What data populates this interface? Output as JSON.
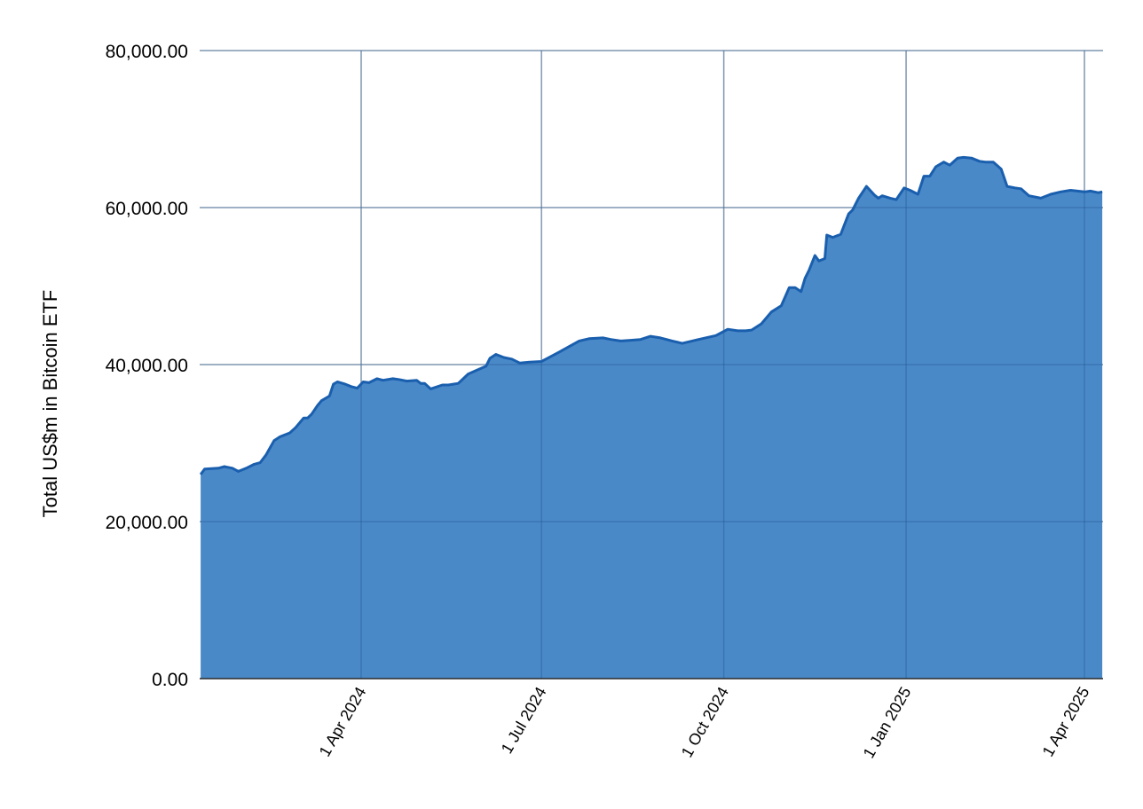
{
  "chart_data": {
    "type": "area",
    "title": "",
    "xlabel": "",
    "ylabel": "Total US$m in Bitcoin ETF",
    "ylim": [
      0,
      80000
    ],
    "xlim": [
      "2024-01-11",
      "2025-04-11"
    ],
    "grid": true,
    "legend": "none",
    "colors": {
      "fill": "#4a89c8",
      "line": "#1a5fae",
      "grid": "#cccccc",
      "axis": "#333333"
    },
    "yticks": [
      {
        "value": 0,
        "label": "0.00"
      },
      {
        "value": 20000,
        "label": "20,000.00"
      },
      {
        "value": 40000,
        "label": "40,000.00"
      },
      {
        "value": 60000,
        "label": "60,000.00"
      },
      {
        "value": 80000,
        "label": "80,000.00"
      }
    ],
    "xticks": [
      {
        "value": "2024-04-01",
        "label": "1 Apr 2024"
      },
      {
        "value": "2024-07-01",
        "label": "1 Jul 2024"
      },
      {
        "value": "2024-10-01",
        "label": "1 Oct 2024"
      },
      {
        "value": "2025-01-01",
        "label": "1 Jan 2025"
      },
      {
        "value": "2025-04-01",
        "label": "1 Apr 2025"
      }
    ],
    "series": [
      {
        "x": [
          "2024-01-11",
          "2024-01-13",
          "2024-01-20",
          "2024-01-23",
          "2024-01-27",
          "2024-01-30",
          "2024-02-03",
          "2024-02-07",
          "2024-02-10",
          "2024-02-13",
          "2024-02-17",
          "2024-02-20",
          "2024-02-22",
          "2024-02-25",
          "2024-02-28",
          "2024-03-03",
          "2024-03-05",
          "2024-03-07",
          "2024-03-10",
          "2024-03-12",
          "2024-03-14",
          "2024-03-16",
          "2024-03-18",
          "2024-03-20",
          "2024-03-24",
          "2024-03-27",
          "2024-03-30",
          "2024-04-02",
          "2024-04-05",
          "2024-04-09",
          "2024-04-12",
          "2024-04-17",
          "2024-04-20",
          "2024-04-24",
          "2024-04-29",
          "2024-05-01",
          "2024-05-03",
          "2024-05-06",
          "2024-05-12",
          "2024-05-15",
          "2024-05-20",
          "2024-05-25",
          "2024-06-03",
          "2024-06-05",
          "2024-06-08",
          "2024-06-12",
          "2024-06-16",
          "2024-06-20",
          "2024-06-25",
          "2024-07-01",
          "2024-07-04",
          "2024-07-10",
          "2024-07-15",
          "2024-07-20",
          "2024-07-25",
          "2024-08-01",
          "2024-08-05",
          "2024-08-10",
          "2024-08-15",
          "2024-08-20",
          "2024-08-25",
          "2024-08-30",
          "2024-09-05",
          "2024-09-10",
          "2024-09-15",
          "2024-09-20",
          "2024-09-27",
          "2024-10-03",
          "2024-10-08",
          "2024-10-12",
          "2024-10-15",
          "2024-10-20",
          "2024-10-25",
          "2024-10-30",
          "2024-11-03",
          "2024-11-06",
          "2024-11-09",
          "2024-11-11",
          "2024-11-13",
          "2024-11-16",
          "2024-11-18",
          "2024-11-21",
          "2024-11-22",
          "2024-11-25",
          "2024-11-29",
          "2024-12-03",
          "2024-12-05",
          "2024-12-08",
          "2024-12-12",
          "2024-12-16",
          "2024-12-18",
          "2024-12-20",
          "2024-12-24",
          "2024-12-27",
          "2024-12-31",
          "2025-01-03",
          "2025-01-07",
          "2025-01-10",
          "2025-01-13",
          "2025-01-16",
          "2025-01-20",
          "2025-01-23",
          "2025-01-27",
          "2025-01-30",
          "2025-02-03",
          "2025-02-07",
          "2025-02-10",
          "2025-02-14",
          "2025-02-18",
          "2025-02-21",
          "2025-02-25",
          "2025-02-28",
          "2025-03-04",
          "2025-03-10",
          "2025-03-15",
          "2025-03-20",
          "2025-03-25",
          "2025-04-01",
          "2025-04-04",
          "2025-04-08",
          "2025-04-10"
        ],
        "values": [
          26000,
          26700,
          26800,
          27000,
          26800,
          26400,
          26800,
          27300,
          27500,
          28500,
          30300,
          30800,
          31000,
          31300,
          32000,
          33200,
          33200,
          33700,
          34800,
          35400,
          35700,
          36000,
          37500,
          37800,
          37500,
          37200,
          37000,
          37800,
          37700,
          38200,
          38000,
          38200,
          38100,
          37900,
          38000,
          37600,
          37600,
          36900,
          37400,
          37400,
          37600,
          38800,
          39800,
          40800,
          41300,
          40900,
          40700,
          40200,
          40300,
          40400,
          40800,
          41600,
          42300,
          43000,
          43300,
          43400,
          43200,
          43000,
          43100,
          43200,
          43600,
          43400,
          43000,
          42700,
          43000,
          43300,
          43700,
          44500,
          44300,
          44300,
          44400,
          45200,
          46700,
          47500,
          49800,
          49800,
          49300,
          51000,
          52000,
          53900,
          53200,
          53500,
          56500,
          56200,
          56600,
          59200,
          59700,
          61200,
          62700,
          61600,
          61200,
          61500,
          61200,
          61000,
          62500,
          62200,
          61700,
          64000,
          64000,
          65200,
          65800,
          65400,
          66300,
          66400,
          66300,
          65900,
          65800,
          65800,
          64900,
          62700,
          62500,
          62400,
          61500,
          61200,
          61700,
          62000,
          62200,
          62000,
          62100,
          61900,
          62000
        ]
      }
    ]
  }
}
